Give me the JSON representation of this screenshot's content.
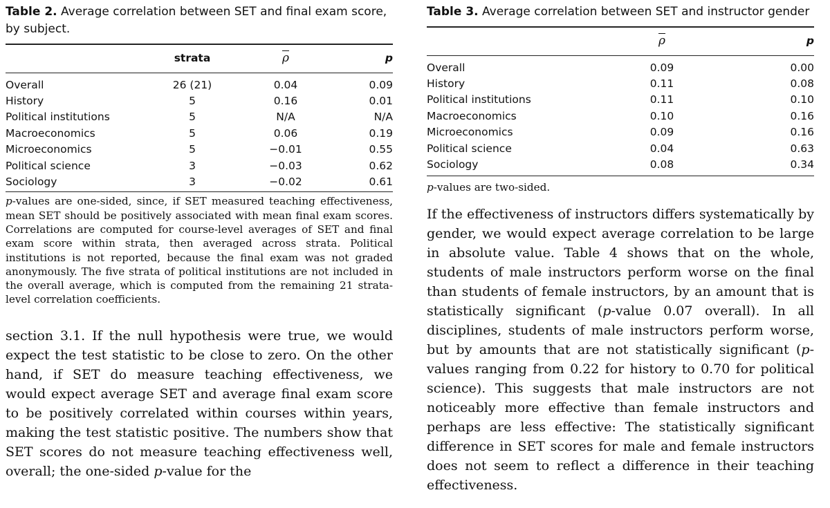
{
  "table2": {
    "label": "Table 2.",
    "caption": "Average correlation between SET and final exam score, by subject.",
    "headers": {
      "strata": "strata",
      "rho": "ρ",
      "p": "p"
    },
    "rows": [
      {
        "subject": "Overall",
        "strata": "26 (21)",
        "rho": "0.04",
        "p": "0.09"
      },
      {
        "subject": "History",
        "strata": "5",
        "rho": "0.16",
        "p": "0.01"
      },
      {
        "subject": "Political institutions",
        "strata": "5",
        "rho": "N/A",
        "p": "N/A"
      },
      {
        "subject": "Macroeconomics",
        "strata": "5",
        "rho": "0.06",
        "p": "0.19"
      },
      {
        "subject": "Microeconomics",
        "strata": "5",
        "rho": "−0.01",
        "p": "0.55"
      },
      {
        "subject": "Political science",
        "strata": "3",
        "rho": "−0.03",
        "p": "0.62"
      },
      {
        "subject": "Sociology",
        "strata": "3",
        "rho": "−0.02",
        "p": "0.61"
      }
    ],
    "note_italic": "p",
    "note_rest": "-values are one-sided, since, if SET measured teaching effectiveness, mean SET should be positively associated with mean final exam scores. Correlations are computed for course-level averages of SET and final exam score within strata, then averaged across strata. Political institutions is not reported, because the final exam was not graded anonymously. The five strata of political institutions are not included in the overall average, which is computed from the remaining 21 strata-level correlation coefficients."
  },
  "left_body": {
    "part1": "section 3.1. If the null hypothesis were true, we would expect the test statistic to be close to zero. On the other hand, if SET do measure teaching effectiveness, we would expect average SET and average final exam score to be positively correlated within courses within years, making the test statistic positive. The numbers show that SET scores do not measure teaching effectiveness well, overall; the one-sided ",
    "italic": "p",
    "part2": "-value for the"
  },
  "table3": {
    "label": "Table 3.",
    "caption": "Average correlation between SET and instructor gender",
    "headers": {
      "rho": "ρ",
      "p": "p"
    },
    "rows": [
      {
        "subject": "Overall",
        "rho": "0.09",
        "p": "0.00"
      },
      {
        "subject": "History",
        "rho": "0.11",
        "p": "0.08"
      },
      {
        "subject": "Political institutions",
        "rho": "0.11",
        "p": "0.10"
      },
      {
        "subject": "Macroeconomics",
        "rho": "0.10",
        "p": "0.16"
      },
      {
        "subject": "Microeconomics",
        "rho": "0.09",
        "p": "0.16"
      },
      {
        "subject": "Political science",
        "rho": "0.04",
        "p": "0.63"
      },
      {
        "subject": "Sociology",
        "rho": "0.08",
        "p": "0.34"
      }
    ],
    "note_italic": "p",
    "note_rest": "-values are two-sided."
  },
  "right_body": {
    "part1": "If the effectiveness of instructors differs systematically by gender, we would expect average correlation to be large in absolute value. Table 4 shows that on the whole, students of male instructors perform worse on the final than students of female instructors, by an amount that is statistically significant (",
    "italic1": "p",
    "part2": "-value 0.07 overall). In all disciplines, students of male instructors perform worse, but by amounts that are not statistically significant (",
    "italic2": "p",
    "part3": "-values ranging from 0.22 for history to 0.70 for political science). This suggests that male instructors are not noticeably more effective than female instructors and perhaps are less effective: The statistically significant difference in SET scores for male and female instructors does not seem to reflect a difference in their teaching effectiveness."
  }
}
